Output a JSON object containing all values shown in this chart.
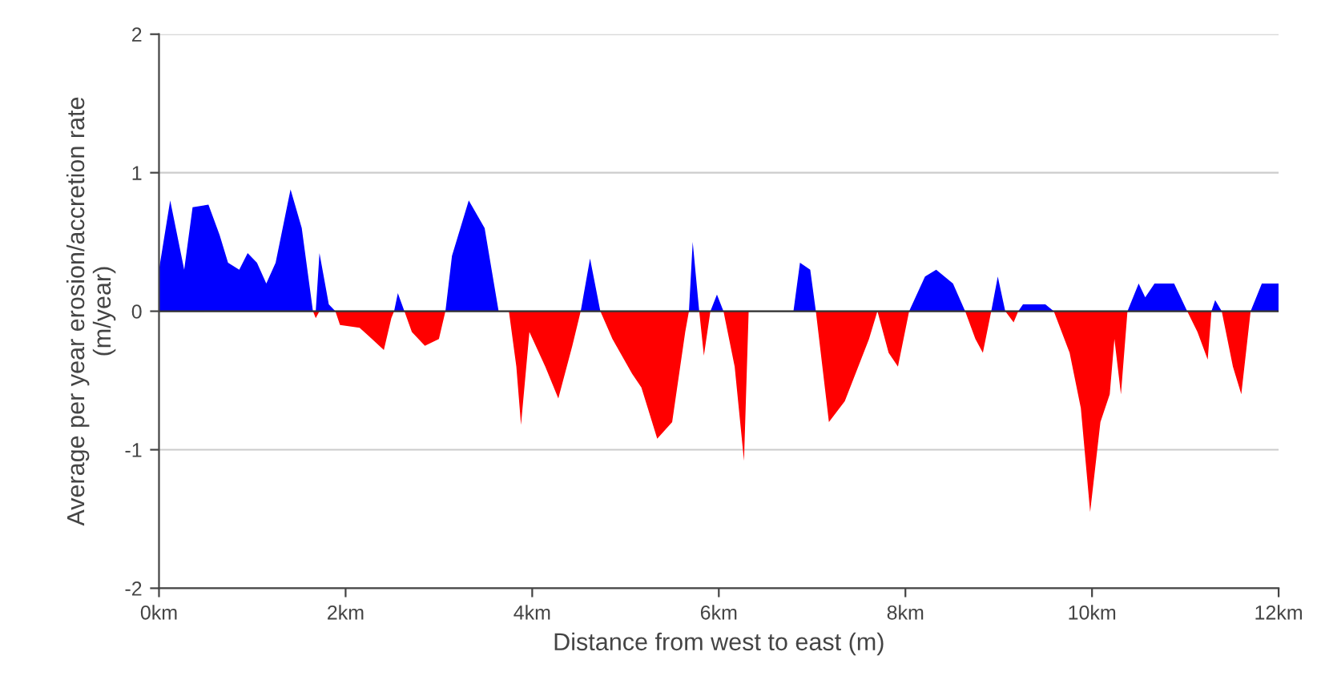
{
  "chart_data": {
    "type": "area",
    "xlabel": "Distance from west to east (m)",
    "ylabel": "Average per year erosion/accretion rate\n(m/year)",
    "x": [
      0,
      0.12,
      0.27,
      0.36,
      0.53,
      0.65,
      0.74,
      0.86,
      0.95,
      1.05,
      1.15,
      1.25,
      1.41,
      1.53,
      1.65,
      1.68,
      1.72,
      1.82,
      1.89,
      1.94,
      2.15,
      2.25,
      2.41,
      2.49,
      2.52,
      2.56,
      2.63,
      2.71,
      2.85,
      3.0,
      3.07,
      3.14,
      3.32,
      3.49,
      3.59,
      3.64,
      3.75,
      3.83,
      3.88,
      3.97,
      4.14,
      4.28,
      4.43,
      4.52,
      4.62,
      4.73,
      4.86,
      5.07,
      5.17,
      5.34,
      5.5,
      5.64,
      5.68,
      5.72,
      5.79,
      5.84,
      5.91,
      5.98,
      6.05,
      6.17,
      6.27,
      6.32,
      6.8,
      6.87,
      6.98,
      7.04,
      7.18,
      7.35,
      7.61,
      7.7,
      7.82,
      7.92,
      8.04,
      8.21,
      8.33,
      8.51,
      8.64,
      8.75,
      8.83,
      8.92,
      8.99,
      9.07,
      9.16,
      9.21,
      9.26,
      9.5,
      9.59,
      9.76,
      9.88,
      9.98,
      10.09,
      10.19,
      10.24,
      10.31,
      10.38,
      10.5,
      10.57,
      10.67,
      10.88,
      11.02,
      11.13,
      11.24,
      11.28,
      11.32,
      11.39,
      11.51,
      11.6,
      11.7,
      11.82,
      12.0
    ],
    "series": [
      {
        "color": "#0000ff",
        "values": [
          0.3,
          0.8,
          0.3,
          0.75,
          0.77,
          0.55,
          0.35,
          0.3,
          0.42,
          0.35,
          0.2,
          0.35,
          0.88,
          0.6,
          0,
          0,
          0.42,
          0.05,
          0,
          0,
          0,
          0,
          0,
          0,
          0,
          0.13,
          0,
          0,
          0,
          0,
          0,
          0.4,
          0.8,
          0.6,
          0.2,
          0,
          0,
          0,
          0,
          0,
          0,
          0,
          0,
          0,
          0.38,
          0,
          0,
          0,
          0,
          0,
          0,
          0,
          0,
          0.5,
          0,
          0,
          0,
          0.12,
          0,
          0,
          0,
          0,
          0,
          0.35,
          0.3,
          0,
          0,
          0,
          0,
          0,
          0,
          0,
          0,
          0.25,
          0.3,
          0.2,
          0,
          0,
          0,
          0,
          0.25,
          0,
          0,
          0,
          0.05,
          0.05,
          0,
          0,
          0,
          0,
          0,
          0,
          0,
          0,
          0,
          0.2,
          0.1,
          0.2,
          0.2,
          0,
          0,
          0,
          0,
          0.08,
          0,
          0,
          0,
          0,
          0.2,
          0.2
        ]
      },
      {
        "color": "#ff0000",
        "values": [
          0,
          0,
          0,
          0,
          0,
          0,
          0,
          0,
          0,
          0,
          0,
          0,
          0,
          0,
          0,
          -0.05,
          0,
          0,
          0,
          -0.1,
          -0.12,
          -0.18,
          -0.28,
          -0.05,
          0,
          0,
          0,
          -0.15,
          -0.25,
          -0.2,
          0,
          0,
          0,
          0,
          0,
          0,
          0,
          -0.4,
          -0.82,
          -0.15,
          -0.4,
          -0.63,
          -0.25,
          0,
          0,
          0,
          -0.2,
          -0.45,
          -0.55,
          -0.92,
          -0.8,
          -0.15,
          0,
          0,
          0,
          -0.32,
          0,
          0,
          0,
          -0.4,
          -1.08,
          0,
          0,
          0,
          0,
          0,
          -0.8,
          -0.65,
          -0.2,
          0,
          -0.3,
          -0.4,
          0,
          0,
          0,
          0,
          0,
          -0.2,
          -0.3,
          0,
          0,
          0,
          -0.08,
          0,
          0,
          0,
          0,
          -0.3,
          -0.7,
          -1.45,
          -0.8,
          -0.6,
          -0.2,
          -0.6,
          0,
          0,
          0,
          0,
          0,
          0,
          -0.15,
          -0.35,
          0,
          0,
          0,
          -0.4,
          -0.6,
          0,
          0,
          0
        ]
      }
    ],
    "xlim": [
      0,
      12
    ],
    "xticks": [
      {
        "value": 0,
        "label": "0km"
      },
      {
        "value": 2,
        "label": "2km"
      },
      {
        "value": 4,
        "label": "4km"
      },
      {
        "value": 6,
        "label": "6km"
      },
      {
        "value": 8,
        "label": "8km"
      },
      {
        "value": 10,
        "label": "10km"
      },
      {
        "value": 12,
        "label": "12km"
      }
    ],
    "ylim": [
      -2,
      2
    ],
    "yticks": [
      -2,
      -1,
      0,
      1,
      2
    ],
    "grid": "y"
  }
}
